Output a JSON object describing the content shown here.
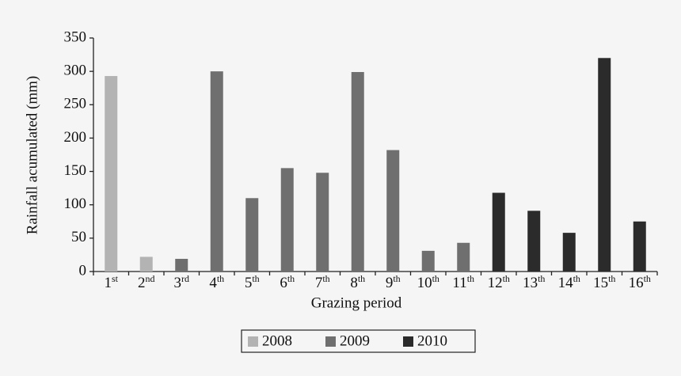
{
  "chart_data": {
    "type": "bar",
    "categories": [
      "1st",
      "2nd",
      "3rd",
      "4th",
      "5th",
      "6th",
      "7th",
      "8th",
      "9th",
      "10th",
      "11th",
      "12th",
      "13th",
      "14th",
      "15th",
      "16th"
    ],
    "series": [
      {
        "name": "2008",
        "color": "#b3b3b3",
        "values": [
          293,
          22,
          null,
          null,
          null,
          null,
          null,
          null,
          null,
          null,
          null,
          null,
          null,
          null,
          null,
          null
        ]
      },
      {
        "name": "2009",
        "color": "#6f6f6f",
        "values": [
          null,
          null,
          19,
          300,
          110,
          155,
          148,
          299,
          182,
          31,
          43,
          null,
          null,
          null,
          null,
          null
        ]
      },
      {
        "name": "2010",
        "color": "#2b2b2b",
        "values": [
          null,
          null,
          null,
          null,
          null,
          null,
          null,
          null,
          null,
          null,
          null,
          118,
          91,
          58,
          320,
          75
        ]
      }
    ],
    "xlabel": "Grazing period",
    "ylabel": "Rainfall acumulated (mm)",
    "ylim": [
      0,
      350
    ],
    "yticks": [
      0,
      50,
      100,
      150,
      200,
      250,
      300,
      350
    ],
    "legend": "bottom"
  }
}
